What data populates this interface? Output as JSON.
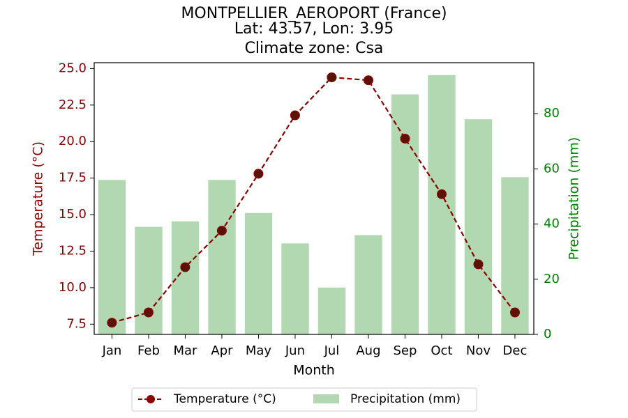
{
  "chart_data": {
    "type": "bar+line",
    "title_lines": [
      "MONTPELLIER_AEROPORT (France)",
      "Lat: 43.57, Lon: 3.95",
      "Climate zone: Csa"
    ],
    "xlabel": "Month",
    "ylabel_left": "Temperature (°C)",
    "ylabel_right": "Precipitation (mm)",
    "categories": [
      "Jan",
      "Feb",
      "Mar",
      "Apr",
      "May",
      "Jun",
      "Jul",
      "Aug",
      "Sep",
      "Oct",
      "Nov",
      "Dec"
    ],
    "temperature": {
      "name": "Temperature (°C)",
      "color": "#8b0000",
      "values": [
        7.6,
        8.3,
        11.4,
        13.9,
        17.8,
        21.8,
        24.4,
        24.2,
        20.2,
        16.4,
        11.6,
        8.3
      ]
    },
    "precipitation": {
      "name": "Precipitation (mm)",
      "color": "#b2d8b2",
      "values": [
        56,
        39,
        41,
        56,
        44,
        33,
        17,
        36,
        87,
        94,
        78,
        57
      ]
    },
    "ylim_left": [
      6.8,
      25.4
    ],
    "ylim_right": [
      0,
      98.5
    ],
    "yticks_left": [
      "7.5",
      "10.0",
      "12.5",
      "15.0",
      "17.5",
      "20.0",
      "22.5",
      "25.0"
    ],
    "yticks_right": [
      "0",
      "20",
      "40",
      "60",
      "80"
    ],
    "left_axis_color": "#8b0000",
    "right_axis_color": "#008000",
    "legend_placement": "bottom-center",
    "grid": false
  }
}
